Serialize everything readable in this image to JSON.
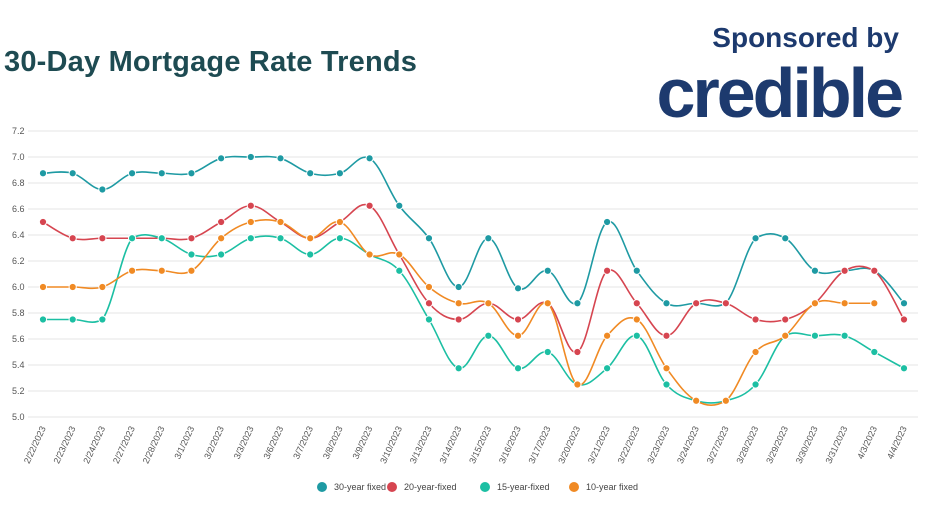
{
  "header": {
    "title": "30-Day Mortgage Rate Trends",
    "sponsor_label": "Sponsored by",
    "sponsor_name": "credible"
  },
  "chart_data": {
    "type": "line",
    "title": "30-Day Mortgage Rate Trends",
    "xlabel": "",
    "ylabel": "",
    "ylim": [
      5.0,
      7.2
    ],
    "yticks": [
      "5.0",
      "5.2",
      "5.4",
      "5.6",
      "5.8",
      "6.0",
      "6.2",
      "6.4",
      "6.6",
      "6.8",
      "7.0",
      "7.2"
    ],
    "grid": true,
    "legend_position": "bottom",
    "categories": [
      "2/22/2023",
      "2/23/2023",
      "2/24/2023",
      "2/27/2023",
      "2/28/2023",
      "3/1/2023",
      "3/2/2023",
      "3/3/2023",
      "3/6/2023",
      "3/7/2023",
      "3/8/2023",
      "3/9/2023",
      "3/10/2023",
      "3/13/2023",
      "3/14/2023",
      "3/15/2023",
      "3/16/2023",
      "3/17/2023",
      "3/20/2023",
      "3/21/2023",
      "3/22/2023",
      "3/23/2023",
      "3/24/2023",
      "3/27/2023",
      "3/28/2023",
      "3/29/2023",
      "3/30/2023",
      "3/31/2023",
      "4/3/2023",
      "4/4/2023"
    ],
    "series": [
      {
        "name": "30-year fixed",
        "color": "#1e9aa3",
        "values": [
          6.875,
          6.875,
          6.75,
          6.875,
          6.875,
          6.875,
          6.99,
          7.0,
          6.99,
          6.875,
          6.875,
          6.99,
          6.625,
          6.375,
          6.0,
          6.375,
          5.99,
          6.125,
          5.875,
          6.5,
          6.125,
          5.875,
          5.875,
          5.875,
          6.375,
          6.375,
          6.125,
          6.125,
          6.125,
          5.875
        ]
      },
      {
        "name": "20-year-fixed",
        "color": "#d64550",
        "values": [
          6.5,
          6.375,
          6.375,
          6.375,
          6.375,
          6.375,
          6.5,
          6.625,
          6.5,
          6.375,
          6.5,
          6.625,
          6.25,
          5.875,
          5.75,
          5.875,
          5.75,
          5.875,
          5.5,
          6.125,
          5.875,
          5.625,
          5.875,
          5.875,
          5.75,
          5.75,
          5.875,
          6.125,
          6.125,
          5.75
        ]
      },
      {
        "name": "15-year-fixed",
        "color": "#1cbfa3",
        "values": [
          5.75,
          5.75,
          5.75,
          6.375,
          6.375,
          6.25,
          6.25,
          6.375,
          6.375,
          6.25,
          6.375,
          6.25,
          6.125,
          5.75,
          5.375,
          5.625,
          5.375,
          5.5,
          5.25,
          5.375,
          5.625,
          5.25,
          5.125,
          5.125,
          5.25,
          5.625,
          5.625,
          5.625,
          5.5,
          5.375
        ]
      },
      {
        "name": "10-year fixed",
        "color": "#f08a24",
        "values": [
          6.0,
          6.0,
          6.0,
          6.125,
          6.125,
          6.125,
          6.375,
          6.5,
          6.5,
          6.375,
          6.5,
          6.25,
          6.25,
          6.0,
          5.875,
          5.875,
          5.625,
          5.875,
          5.25,
          5.625,
          5.75,
          5.375,
          5.125,
          5.125,
          5.5,
          5.625,
          5.875,
          5.875,
          5.875,
          null
        ]
      }
    ]
  }
}
